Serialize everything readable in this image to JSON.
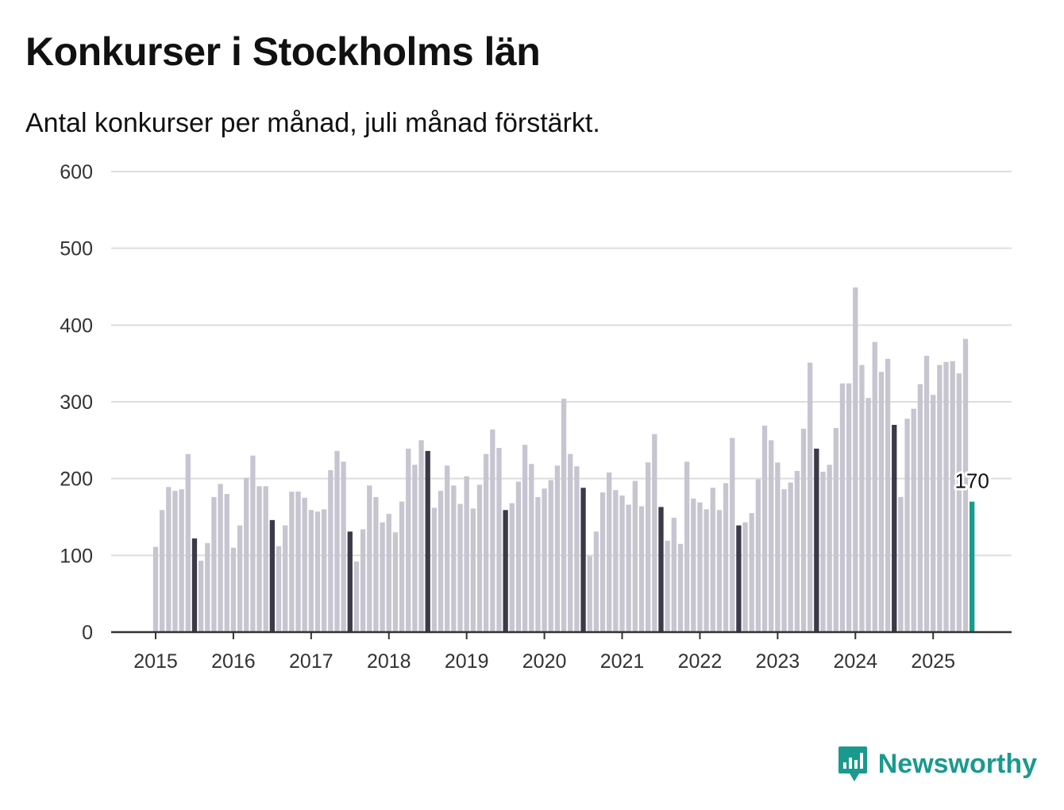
{
  "header": {
    "title": "Konkurser i Stockholms län",
    "subtitle": "Antal konkurser per månad, juli månad förstärkt."
  },
  "brand": {
    "name": "Newsworthy"
  },
  "colors": {
    "bar": "#c6c5d0",
    "july": "#3b3a48",
    "latest": "#1a9a8e",
    "grid": "#dddddd",
    "axis": "#333333"
  },
  "chart_data": {
    "type": "bar",
    "ylim": [
      0,
      600
    ],
    "yticks": [
      "0",
      "100",
      "200",
      "300",
      "400",
      "500",
      "600"
    ],
    "year_labels": [
      "2015",
      "2016",
      "2017",
      "2018",
      "2019",
      "2020",
      "2021",
      "2022",
      "2023",
      "2024",
      "2025"
    ],
    "start": "2015-01",
    "highlight_month": "juli",
    "latest_label": "170",
    "values": [
      111,
      159,
      189,
      184,
      186,
      232,
      122,
      93,
      116,
      176,
      193,
      180,
      110,
      139,
      201,
      230,
      190,
      190,
      146,
      112,
      139,
      183,
      183,
      175,
      159,
      157,
      160,
      211,
      236,
      222,
      131,
      92,
      134,
      191,
      176,
      143,
      154,
      130,
      170,
      239,
      218,
      250,
      236,
      162,
      184,
      217,
      191,
      167,
      203,
      161,
      192,
      232,
      264,
      240,
      159,
      168,
      196,
      244,
      219,
      176,
      187,
      198,
      217,
      304,
      232,
      216,
      188,
      99,
      131,
      182,
      208,
      185,
      178,
      166,
      197,
      164,
      221,
      258,
      163,
      119,
      149,
      115,
      222,
      174,
      169,
      160,
      188,
      159,
      194,
      253,
      139,
      143,
      155,
      199,
      269,
      250,
      221,
      186,
      195,
      210,
      265,
      351,
      239,
      209,
      218,
      266,
      324,
      324,
      449,
      348,
      305,
      378,
      339,
      356,
      270,
      176,
      278,
      291,
      323,
      360,
      309,
      348,
      352,
      353,
      337,
      382,
      170
    ]
  }
}
